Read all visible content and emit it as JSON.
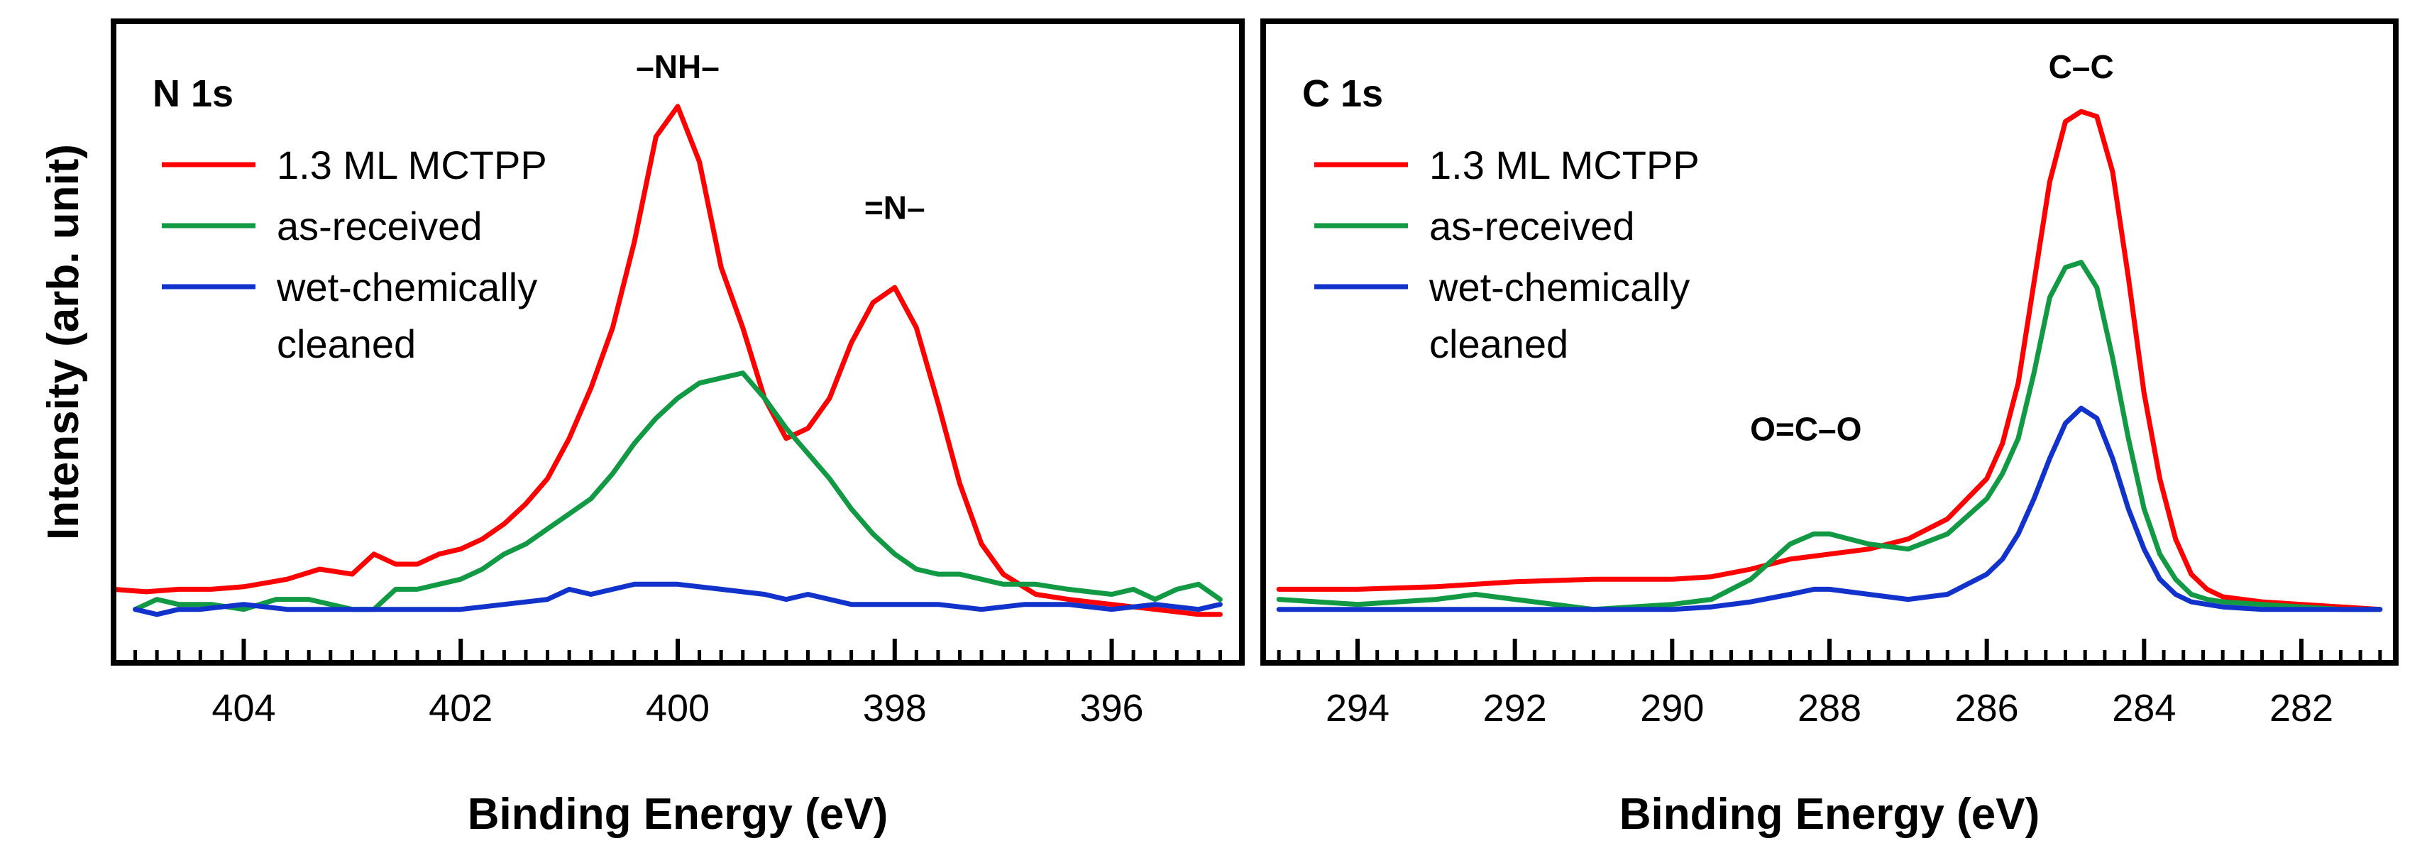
{
  "chart_data": [
    {
      "type": "line",
      "title": "N 1s",
      "xlabel": "Binding Energy (eV)",
      "ylabel": "Intensity (arb. unit)",
      "xlim": [
        405.2,
        394.8
      ],
      "ylim": [
        -0.03,
        1.0
      ],
      "x_reversed": true,
      "ticks": [
        {
          "value": 404,
          "label": "404"
        },
        {
          "value": 402,
          "label": "402"
        },
        {
          "value": 400,
          "label": "400"
        },
        {
          "value": 398,
          "label": "398"
        },
        {
          "value": 396,
          "label": "396"
        }
      ],
      "minor_tick_step": 0.2,
      "annotations": [
        {
          "text": "–NH–",
          "x": 400.0,
          "y": 1.0
        },
        {
          "text": "=N–",
          "x": 398.0,
          "y": 0.72
        }
      ],
      "series": [
        {
          "name": "1.3 ML MCTPP",
          "color": "#ff0000",
          "x": [
            405.2,
            404.9,
            404.6,
            404.3,
            404.0,
            403.6,
            403.3,
            403.0,
            402.8,
            402.6,
            402.4,
            402.2,
            402.0,
            401.8,
            401.6,
            401.4,
            401.2,
            401.0,
            400.8,
            400.6,
            400.4,
            400.2,
            400.0,
            399.8,
            399.6,
            399.4,
            399.2,
            399.0,
            398.8,
            398.6,
            398.4,
            398.2,
            398.0,
            397.8,
            397.6,
            397.4,
            397.2,
            397.0,
            396.7,
            396.4,
            396.0,
            395.6,
            395.2,
            395.0
          ],
          "y": [
            0.04,
            0.035,
            0.04,
            0.04,
            0.045,
            0.06,
            0.08,
            0.07,
            0.11,
            0.09,
            0.09,
            0.11,
            0.12,
            0.14,
            0.17,
            0.21,
            0.26,
            0.34,
            0.44,
            0.56,
            0.73,
            0.94,
            1.0,
            0.89,
            0.68,
            0.56,
            0.42,
            0.34,
            0.36,
            0.42,
            0.53,
            0.61,
            0.64,
            0.56,
            0.41,
            0.25,
            0.13,
            0.07,
            0.03,
            0.02,
            0.01,
            0.0,
            -0.01,
            -0.01
          ]
        },
        {
          "name": "as-received",
          "color": "#119944",
          "x": [
            405.0,
            404.8,
            404.6,
            404.3,
            404.0,
            403.7,
            403.4,
            403.0,
            402.8,
            402.6,
            402.4,
            402.2,
            402.0,
            401.8,
            401.6,
            401.4,
            401.2,
            401.0,
            400.8,
            400.6,
            400.4,
            400.2,
            400.0,
            399.8,
            399.6,
            399.4,
            399.2,
            399.0,
            398.8,
            398.6,
            398.4,
            398.2,
            398.0,
            397.8,
            397.6,
            397.4,
            397.2,
            397.0,
            396.7,
            396.4,
            396.0,
            395.8,
            395.6,
            395.4,
            395.2,
            395.0
          ],
          "y": [
            0.0,
            0.02,
            0.01,
            0.01,
            0.0,
            0.02,
            0.02,
            0.0,
            0.0,
            0.04,
            0.04,
            0.05,
            0.06,
            0.08,
            0.11,
            0.13,
            0.16,
            0.19,
            0.22,
            0.27,
            0.33,
            0.38,
            0.42,
            0.45,
            0.46,
            0.47,
            0.42,
            0.36,
            0.31,
            0.26,
            0.2,
            0.15,
            0.11,
            0.08,
            0.07,
            0.07,
            0.06,
            0.05,
            0.05,
            0.04,
            0.03,
            0.04,
            0.02,
            0.04,
            0.05,
            0.02
          ]
        },
        {
          "name": "wet-chemically cleaned",
          "color": "#1133cc",
          "x": [
            405.0,
            404.8,
            404.6,
            404.4,
            404.0,
            403.6,
            403.2,
            402.8,
            402.4,
            402.0,
            401.6,
            401.2,
            401.0,
            400.8,
            400.4,
            400.0,
            399.6,
            399.2,
            399.0,
            398.8,
            398.4,
            398.0,
            397.6,
            397.2,
            396.8,
            396.4,
            396.0,
            395.6,
            395.2,
            395.0
          ],
          "y": [
            0.0,
            -0.01,
            0.0,
            0.0,
            0.01,
            0.0,
            0.0,
            0.0,
            0.0,
            0.0,
            0.01,
            0.02,
            0.04,
            0.03,
            0.05,
            0.05,
            0.04,
            0.03,
            0.02,
            0.03,
            0.01,
            0.01,
            0.01,
            0.0,
            0.01,
            0.01,
            0.0,
            0.01,
            0.0,
            0.01
          ]
        }
      ]
    },
    {
      "type": "line",
      "title": "C 1s",
      "xlabel": "Binding Energy (eV)",
      "ylabel": "",
      "xlim": [
        295.2,
        280.8
      ],
      "ylim": [
        -0.03,
        1.0
      ],
      "x_reversed": true,
      "ticks": [
        {
          "value": 294,
          "label": "294"
        },
        {
          "value": 292,
          "label": "292"
        },
        {
          "value": 290,
          "label": "290"
        },
        {
          "value": 288,
          "label": "288"
        },
        {
          "value": 286,
          "label": "286"
        },
        {
          "value": 284,
          "label": "284"
        },
        {
          "value": 282,
          "label": "282"
        }
      ],
      "minor_tick_step": 0.25,
      "annotations": [
        {
          "text": "C–C",
          "x": 284.8,
          "y": 1.0
        },
        {
          "text": "O=C–O",
          "x": 288.3,
          "y": 0.28
        }
      ],
      "series": [
        {
          "name": "1.3 ML MCTPP",
          "color": "#ff0000",
          "x": [
            295.0,
            294.0,
            293.0,
            292.0,
            291.0,
            290.0,
            289.5,
            289.0,
            288.5,
            288.0,
            287.5,
            287.0,
            286.5,
            286.0,
            285.8,
            285.6,
            285.4,
            285.2,
            285.0,
            284.8,
            284.6,
            284.4,
            284.2,
            284.0,
            283.8,
            283.6,
            283.4,
            283.2,
            283.0,
            282.5,
            282.0,
            281.5,
            281.0
          ],
          "y": [
            0.04,
            0.04,
            0.045,
            0.055,
            0.06,
            0.06,
            0.065,
            0.08,
            0.1,
            0.11,
            0.12,
            0.14,
            0.18,
            0.26,
            0.33,
            0.45,
            0.65,
            0.85,
            0.97,
            0.99,
            0.98,
            0.87,
            0.66,
            0.43,
            0.26,
            0.14,
            0.07,
            0.04,
            0.025,
            0.015,
            0.01,
            0.005,
            0.0
          ]
        },
        {
          "name": "as-received",
          "color": "#119944",
          "x": [
            295.0,
            294.0,
            293.0,
            292.5,
            292.0,
            291.0,
            290.0,
            289.5,
            289.0,
            288.5,
            288.2,
            288.0,
            287.5,
            287.0,
            286.5,
            286.0,
            285.8,
            285.6,
            285.4,
            285.2,
            285.0,
            284.8,
            284.6,
            284.4,
            284.2,
            284.0,
            283.8,
            283.6,
            283.4,
            283.2,
            283.0,
            282.5,
            282.0,
            281.5,
            281.0
          ],
          "y": [
            0.02,
            0.01,
            0.02,
            0.03,
            0.02,
            0.0,
            0.01,
            0.02,
            0.06,
            0.13,
            0.15,
            0.15,
            0.13,
            0.12,
            0.15,
            0.22,
            0.27,
            0.34,
            0.47,
            0.62,
            0.68,
            0.69,
            0.64,
            0.5,
            0.34,
            0.2,
            0.11,
            0.06,
            0.03,
            0.02,
            0.015,
            0.01,
            0.005,
            0.0,
            0.0
          ]
        },
        {
          "name": "wet-chemically cleaned",
          "color": "#1133cc",
          "x": [
            295.0,
            294.0,
            293.0,
            292.0,
            291.0,
            290.0,
            289.5,
            289.0,
            288.5,
            288.2,
            288.0,
            287.5,
            287.0,
            286.5,
            286.0,
            285.8,
            285.6,
            285.4,
            285.2,
            285.0,
            284.8,
            284.6,
            284.4,
            284.2,
            284.0,
            283.8,
            283.6,
            283.4,
            283.2,
            283.0,
            282.5,
            282.0,
            281.5,
            281.0
          ],
          "y": [
            0.0,
            0.0,
            0.0,
            0.0,
            0.0,
            0.0,
            0.005,
            0.015,
            0.03,
            0.04,
            0.04,
            0.03,
            0.02,
            0.03,
            0.07,
            0.1,
            0.15,
            0.22,
            0.3,
            0.37,
            0.4,
            0.38,
            0.3,
            0.2,
            0.12,
            0.06,
            0.03,
            0.015,
            0.01,
            0.005,
            0.0,
            0.0,
            0.0,
            0.0
          ]
        }
      ]
    }
  ]
}
